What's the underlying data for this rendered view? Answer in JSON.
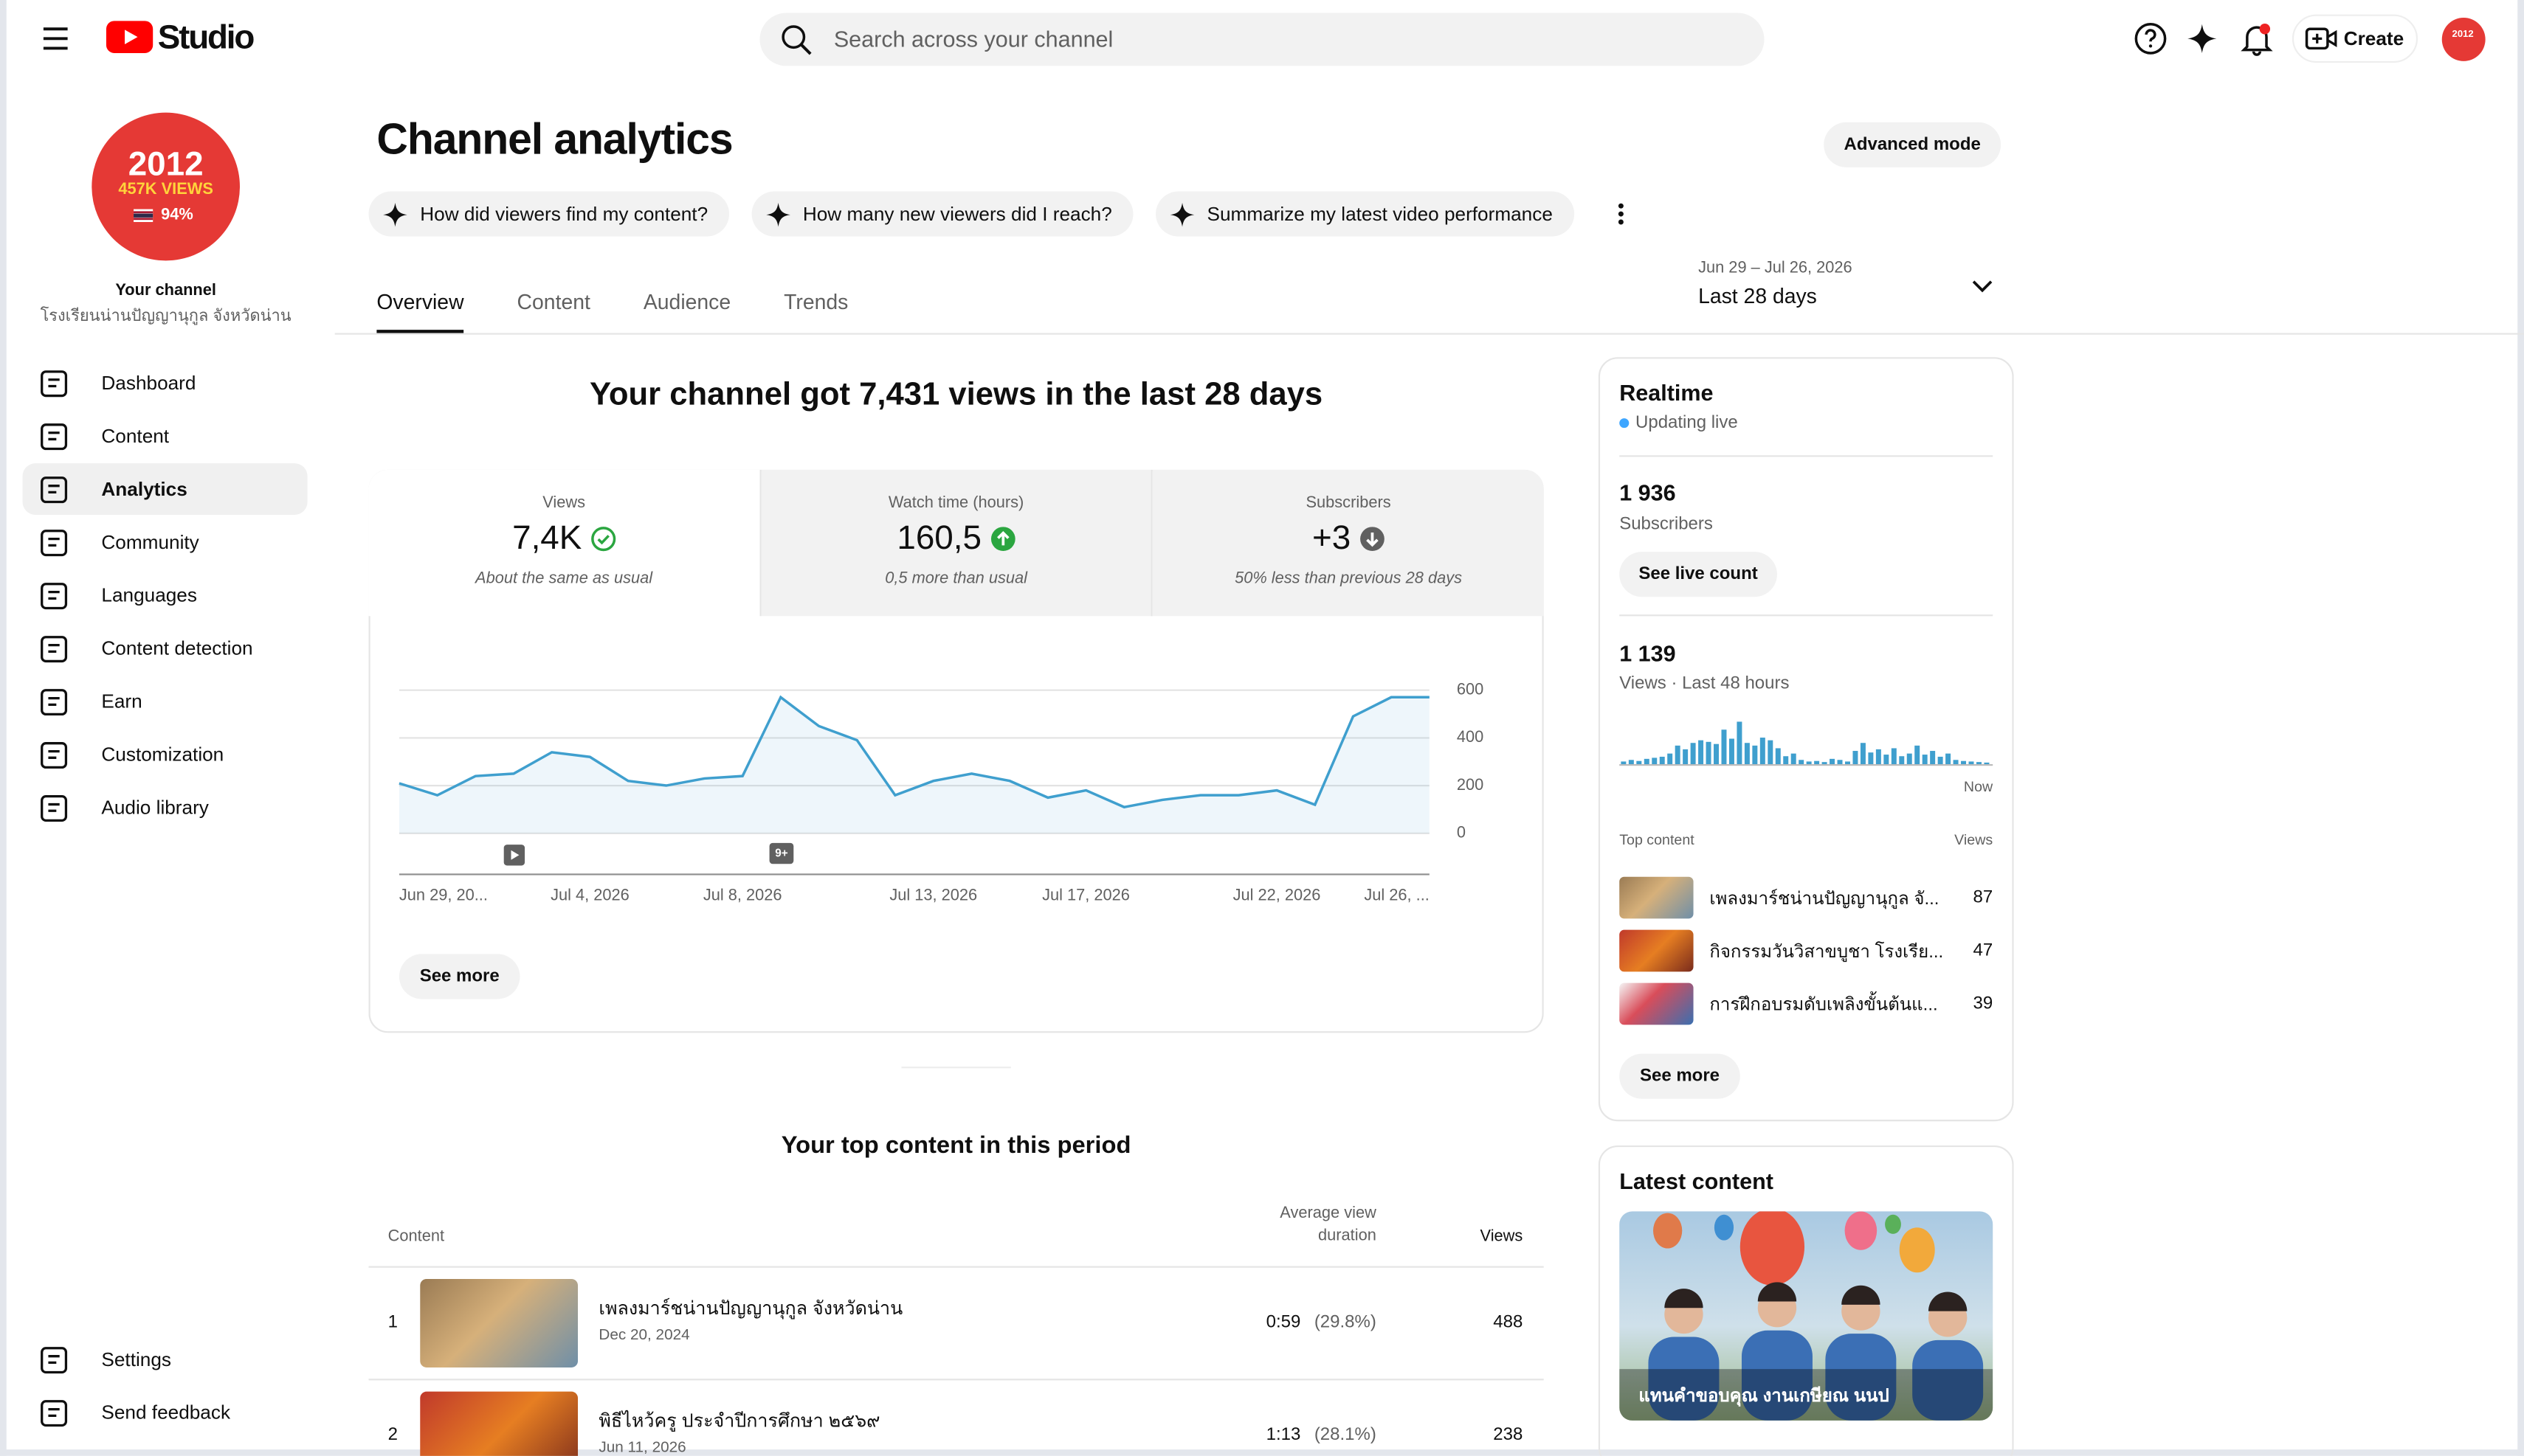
{
  "header": {
    "logo_text": "Studio",
    "search_placeholder": "Search across your channel",
    "create_label": "Create",
    "avatar_text": "2012"
  },
  "channel": {
    "avatar_year": "2012",
    "avatar_views": "457K VIEWS",
    "avatar_percent": "94%",
    "label": "Your channel",
    "name": "โรงเรียนน่านปัญญานุกูล จังหวัดน่าน"
  },
  "nav": {
    "items": [
      "Dashboard",
      "Content",
      "Analytics",
      "Community",
      "Languages",
      "Content detection",
      "Earn",
      "Customization",
      "Audio library"
    ],
    "active": 2,
    "bottom": [
      "Settings",
      "Send feedback"
    ]
  },
  "page": {
    "title": "Channel analytics",
    "advanced_mode": "Advanced mode",
    "prompts": [
      "How did viewers find my content?",
      "How many new viewers did I reach?",
      "Summarize my latest video performance"
    ],
    "tabs": [
      "Overview",
      "Content",
      "Audience",
      "Trends"
    ],
    "active_tab": 0,
    "date_range": "Jun 29 – Jul 26, 2026",
    "period": "Last 28 days"
  },
  "overview": {
    "headline": "Your channel got 7,431 views in the last 28 days",
    "metrics": [
      {
        "label": "Views",
        "value": "7,4K",
        "trend": "same",
        "note": "About the same as usual"
      },
      {
        "label": "Watch time (hours)",
        "value": "160,5",
        "trend": "up",
        "note": "0,5 more than usual"
      },
      {
        "label": "Subscribers",
        "value": "+3",
        "trend": "down",
        "note": "50% less than previous 28 days"
      }
    ],
    "event_badge": "9+",
    "see_more": "See more"
  },
  "chart_data": {
    "type": "line",
    "categories": [
      "Jun 29, 20...",
      null,
      null,
      null,
      null,
      "Jul 4, 2026",
      null,
      null,
      null,
      "Jul 8, 2026",
      null,
      null,
      null,
      null,
      "Jul 13, 2026",
      null,
      null,
      null,
      "Jul 17, 2026",
      null,
      null,
      null,
      null,
      "Jul 22, 2026",
      null,
      null,
      null,
      "Jul 26, ..."
    ],
    "values": [
      210,
      160,
      240,
      250,
      340,
      320,
      220,
      200,
      230,
      240,
      570,
      450,
      390,
      160,
      220,
      250,
      220,
      150,
      180,
      110,
      140,
      160,
      160,
      180,
      120,
      490,
      570,
      570
    ],
    "color": "#3f9fce",
    "ylim": [
      0,
      600
    ],
    "yticks": [
      0,
      200,
      400,
      600
    ],
    "grid": true
  },
  "top_content": {
    "title": "Your top content in this period",
    "columns": [
      "Content",
      "Average view duration",
      "Views"
    ],
    "rows": [
      {
        "rank": "1",
        "title": "เพลงมาร์ชน่านปัญญานุกูล จังหวัดน่าน",
        "date": "Dec 20, 2024",
        "duration": "0:59",
        "percent": "(29.8%)",
        "views": "488"
      },
      {
        "rank": "2",
        "title": "พิธีไหว้ครู ประจำปีการศึกษา ๒๕๖๙",
        "date": "Jun 11, 2026",
        "duration": "1:13",
        "percent": "(28.1%)",
        "views": "238"
      }
    ]
  },
  "realtime": {
    "title": "Realtime",
    "status": "Updating live",
    "subscribers": "1 936",
    "subscribers_label": "Subscribers",
    "live_count_button": "See live count",
    "views": "1 139",
    "views_label": "Views · Last 48 hours",
    "hourly_views": [
      5,
      8,
      6,
      10,
      12,
      14,
      20,
      35,
      28,
      40,
      45,
      42,
      38,
      65,
      48,
      80,
      40,
      35,
      50,
      45,
      30,
      15,
      20,
      8,
      5,
      6,
      4,
      10,
      8,
      5,
      25,
      40,
      22,
      28,
      18,
      30,
      15,
      20,
      35,
      18,
      25,
      14,
      20,
      8,
      6,
      5,
      4,
      3
    ],
    "now_label": "Now",
    "top_content_label": "Top content",
    "views_column": "Views",
    "top_content": [
      {
        "title": "เพลงมาร์ชน่านปัญญานุกูล จั...",
        "views": "87"
      },
      {
        "title": "กิจกรรมวันวิสาขบูชา โรงเรีย...",
        "views": "47"
      },
      {
        "title": "การฝึกอบรมดับเพลิงขั้นต้นแ...",
        "views": "39"
      }
    ],
    "see_more": "See more"
  },
  "latest_content": {
    "title": "Latest content",
    "caption": "แทนคำขอบคุณ งานเกษียณ นนป"
  }
}
